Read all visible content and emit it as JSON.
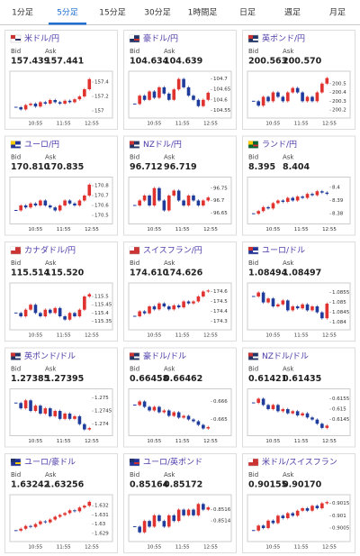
{
  "tabs": [
    "1分足",
    "5分足",
    "15分足",
    "30分足",
    "1時間足",
    "日足",
    "週足",
    "月足"
  ],
  "active_tab": 1,
  "up_color": "#e0322e",
  "down_color": "#1f3c9c",
  "cards": [
    {
      "name": "米ドル/円",
      "bid_label": "Bid",
      "ask_label": "Ask",
      "bid": "157.439",
      "ask": "157.441",
      "xticks": [
        "10:55",
        "11:55",
        "12:55"
      ],
      "ylim": [
        156.95,
        157.5
      ],
      "yticks": [
        157.4,
        157.2,
        157
      ],
      "values": [
        157.05,
        157.02,
        157.08,
        157.1,
        157.06,
        157.12,
        157.1,
        157.15,
        157.12,
        157.1,
        157.14,
        157.12,
        157.16,
        157.2,
        157.3,
        157.44
      ]
    },
    {
      "name": "豪ドル/円",
      "bid_label": "Bid",
      "ask_label": "Ask",
      "bid": "104.634",
      "ask": "104.639",
      "xticks": [
        "10:55",
        "11:55",
        "12:55"
      ],
      "ylim": [
        104.53,
        104.72
      ],
      "yticks": [
        104.7,
        104.65,
        104.6,
        104.55
      ],
      "values": [
        104.58,
        104.62,
        104.6,
        104.64,
        104.61,
        104.66,
        104.63,
        104.6,
        104.65,
        104.7,
        104.66,
        104.62,
        104.6,
        104.57,
        104.6,
        104.634
      ]
    },
    {
      "name": "英ポンド/円",
      "bid_label": "Bid",
      "ask_label": "Ask",
      "bid": "200.563",
      "ask": "200.570",
      "xticks": [
        "10:55",
        "11:55",
        "12:55"
      ],
      "ylim": [
        200.15,
        200.6
      ],
      "yticks": [
        200.5,
        200.4,
        200.3,
        200.2
      ],
      "values": [
        200.3,
        200.25,
        200.35,
        200.3,
        200.4,
        200.35,
        200.3,
        200.4,
        200.45,
        200.4,
        200.3,
        200.35,
        200.3,
        200.4,
        200.5,
        200.563
      ]
    },
    {
      "name": "ユーロ/円",
      "bid_label": "Bid",
      "ask_label": "Ask",
      "bid": "170.810",
      "ask": "170.835",
      "xticks": [
        "10:55",
        "11:55",
        "12:55"
      ],
      "ylim": [
        170.45,
        170.85
      ],
      "yticks": [
        170.8,
        170.7,
        170.6,
        170.5
      ],
      "values": [
        170.55,
        170.6,
        170.58,
        170.62,
        170.6,
        170.65,
        170.6,
        170.58,
        170.55,
        170.6,
        170.65,
        170.62,
        170.6,
        170.65,
        170.7,
        170.81
      ]
    },
    {
      "name": "NZドル/円",
      "bid_label": "Bid",
      "ask_label": "Ask",
      "bid": "96.712",
      "ask": "96.719",
      "xticks": [
        "10:55",
        "11:55",
        "12:55"
      ],
      "ylim": [
        96.62,
        96.78
      ],
      "yticks": [
        96.75,
        96.7,
        96.65
      ],
      "values": [
        96.68,
        96.7,
        96.72,
        96.68,
        96.75,
        96.7,
        96.66,
        96.72,
        96.74,
        96.7,
        96.68,
        96.72,
        96.7,
        96.68,
        96.7,
        96.712
      ]
    },
    {
      "name": "ランド/円",
      "bid_label": "Bid",
      "ask_label": "Ask",
      "bid": "8.395",
      "ask": "8.404",
      "xticks": [
        "10:55",
        "11:55",
        "12:55"
      ],
      "ylim": [
        8.375,
        8.405
      ],
      "yticks": [
        8.4,
        8.39,
        8.38
      ],
      "values": [
        8.38,
        8.382,
        8.385,
        8.384,
        8.388,
        8.39,
        8.389,
        8.392,
        8.39,
        8.393,
        8.392,
        8.395,
        8.394,
        8.397,
        8.396,
        8.395
      ]
    },
    {
      "name": "カナダドル/円",
      "bid_label": "Bid",
      "ask_label": "Ask",
      "bid": "115.514",
      "ask": "115.520",
      "xticks": [
        "10:55",
        "11:55",
        "12:55"
      ],
      "ylim": [
        115.32,
        115.56
      ],
      "yticks": [
        115.5,
        115.45,
        115.4,
        115.35
      ],
      "values": [
        115.4,
        115.38,
        115.42,
        115.45,
        115.4,
        115.38,
        115.42,
        115.4,
        115.43,
        115.38,
        115.36,
        115.4,
        115.38,
        115.42,
        115.5,
        115.514
      ]
    },
    {
      "name": "スイスフラン/円",
      "bid_label": "Bid",
      "ask_label": "Ask",
      "bid": "174.610",
      "ask": "174.626",
      "xticks": [
        "10:55",
        "11:55",
        "12:55"
      ],
      "ylim": [
        174.25,
        174.65
      ],
      "yticks": [
        174.6,
        174.5,
        174.4,
        174.3
      ],
      "values": [
        174.35,
        174.4,
        174.38,
        174.45,
        174.42,
        174.48,
        174.45,
        174.42,
        174.46,
        174.44,
        174.5,
        174.48,
        174.5,
        174.55,
        174.6,
        174.61
      ]
    },
    {
      "name": "ユーロ/ドル",
      "bid_label": "Bid",
      "ask_label": "Ask",
      "bid": "1.08494",
      "ask": "1.08497",
      "xticks": [
        "10:55",
        "11:55",
        "12:55"
      ],
      "ylim": [
        1.0838,
        1.0858
      ],
      "yticks": [
        1.0855,
        1.085,
        1.0845,
        1.084
      ],
      "values": [
        1.0853,
        1.0855,
        1.085,
        1.0852,
        1.0848,
        1.0849,
        1.0851,
        1.0846,
        1.0848,
        1.0847,
        1.0849,
        1.0846,
        1.0848,
        1.0845,
        1.0842,
        1.08494
      ]
    },
    {
      "name": "英ポンド/ドル",
      "bid_label": "Bid",
      "ask_label": "Ask",
      "bid": "1.27385",
      "ask": "1.27395",
      "xticks": [
        "10:55",
        "11:55",
        "12:55"
      ],
      "ylim": [
        1.2737,
        1.2752
      ],
      "yticks": [
        1.275,
        1.2745,
        1.274
      ],
      "values": [
        1.2748,
        1.2746,
        1.2749,
        1.2745,
        1.2747,
        1.2744,
        1.2746,
        1.2743,
        1.2745,
        1.2742,
        1.2744,
        1.2742,
        1.2743,
        1.274,
        1.2738,
        1.27385
      ]
    },
    {
      "name": "豪ドル/ドル",
      "bid_label": "Bid",
      "ask_label": "Ask",
      "bid": "0.66458",
      "ask": "0.66462",
      "xticks": [
        "10:55",
        "11:55",
        "12:55"
      ],
      "ylim": [
        0.6643,
        0.6665
      ],
      "yticks": [
        0.666,
        0.665
      ],
      "values": [
        0.6658,
        0.666,
        0.6657,
        0.6655,
        0.6657,
        0.6654,
        0.6655,
        0.6652,
        0.6654,
        0.6651,
        0.6652,
        0.665,
        0.6649,
        0.6647,
        0.6645,
        0.66458
      ]
    },
    {
      "name": "NZドル/ドル",
      "bid_label": "Bid",
      "ask_label": "Ask",
      "bid": "0.61421",
      "ask": "0.61435",
      "xticks": [
        "10:55",
        "11:55",
        "12:55"
      ],
      "ylim": [
        0.6139,
        0.6158
      ],
      "yticks": [
        0.6155,
        0.615,
        0.6145
      ],
      "values": [
        0.6153,
        0.6155,
        0.6152,
        0.615,
        0.6152,
        0.6149,
        0.615,
        0.6148,
        0.6149,
        0.6147,
        0.6148,
        0.6146,
        0.6145,
        0.6143,
        0.6141,
        0.61421
      ]
    },
    {
      "name": "ユーロ/豪ドル",
      "bid_label": "Bid",
      "ask_label": "Ask",
      "bid": "1.63242",
      "ask": "1.63256",
      "xticks": [
        "10:55",
        "11:55",
        "12:55"
      ],
      "ylim": [
        1.6285,
        1.6328
      ],
      "yticks": [
        1.632,
        1.631,
        1.63,
        1.629
      ],
      "values": [
        1.6293,
        1.6295,
        1.6298,
        1.6297,
        1.63,
        1.6303,
        1.6302,
        1.6305,
        1.6308,
        1.631,
        1.6312,
        1.6315,
        1.6314,
        1.6318,
        1.632,
        1.63242
      ]
    },
    {
      "name": "ユーロ/英ポンド",
      "bid_label": "Bid",
      "ask_label": "Ask",
      "bid": "0.85164",
      "ask": "0.85172",
      "xticks": [
        "10:55",
        "11:55",
        "12:55"
      ],
      "ylim": [
        0.8511,
        0.8518
      ],
      "yticks": [
        0.8516,
        0.8514
      ],
      "values": [
        0.8513,
        0.8512,
        0.8514,
        0.8513,
        0.8515,
        0.8514,
        0.8513,
        0.8515,
        0.8514,
        0.8516,
        0.8515,
        0.8516,
        0.8515,
        0.8517,
        0.8516,
        0.85164
      ]
    },
    {
      "name": "米ドル/スイスフラン",
      "bid_label": "Bid",
      "ask_label": "Ask",
      "bid": "0.90155",
      "ask": "0.90170",
      "xticks": [
        "10:55",
        "11:55",
        "12:55"
      ],
      "ylim": [
        0.9001,
        0.9017
      ],
      "yticks": [
        0.9015,
        0.901,
        0.9005
      ],
      "values": [
        0.9004,
        0.9006,
        0.9005,
        0.9008,
        0.9007,
        0.901,
        0.9009,
        0.9011,
        0.901,
        0.9012,
        0.9013,
        0.9012,
        0.9014,
        0.9013,
        0.9015,
        0.90155
      ]
    }
  ]
}
